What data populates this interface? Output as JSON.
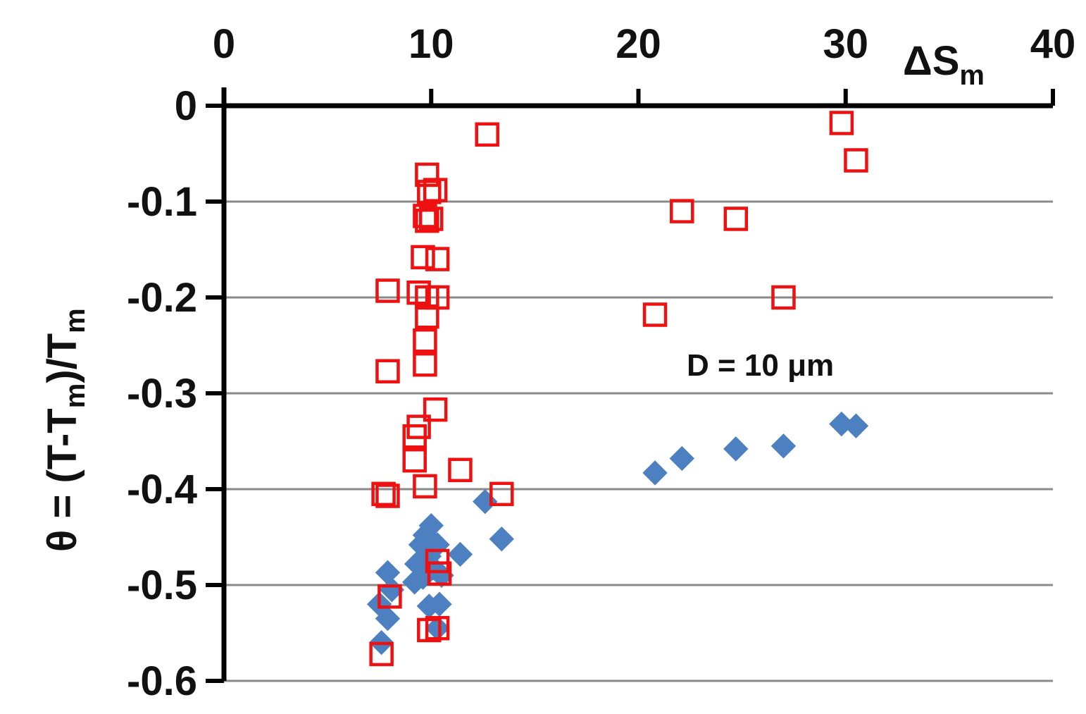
{
  "chart_data": {
    "type": "scatter",
    "x_axis": {
      "label_main": "ΔS",
      "label_sub": "m",
      "range": [
        0,
        40
      ],
      "ticks": [
        "0",
        "10",
        "20",
        "30",
        "40"
      ],
      "position": "top"
    },
    "y_axis": {
      "label_prefix": "θ = (T-T",
      "label_sub1": "m",
      "label_mid": ")/T",
      "label_sub2": "m",
      "range": [
        -0.6,
        0
      ],
      "ticks": [
        "0",
        "-0.1",
        "-0.2",
        "-0.3",
        "-0.4",
        "-0.5",
        "-0.6"
      ],
      "grid": true
    },
    "annotation": "D = 10 μm",
    "series": [
      {
        "marker": "open-square",
        "color": "#ee1111",
        "points": [
          [
            12.7,
            -0.03
          ],
          [
            29.8,
            -0.018
          ],
          [
            30.5,
            -0.057
          ],
          [
            9.8,
            -0.072
          ],
          [
            9.9,
            -0.09
          ],
          [
            10.2,
            -0.088
          ],
          [
            9.7,
            -0.115
          ],
          [
            9.8,
            -0.12
          ],
          [
            10.0,
            -0.118
          ],
          [
            9.6,
            -0.158
          ],
          [
            10.3,
            -0.16
          ],
          [
            7.9,
            -0.193
          ],
          [
            9.4,
            -0.195
          ],
          [
            9.8,
            -0.2
          ],
          [
            10.3,
            -0.2
          ],
          [
            9.8,
            -0.22
          ],
          [
            9.7,
            -0.245
          ],
          [
            9.7,
            -0.27
          ],
          [
            7.9,
            -0.277
          ],
          [
            10.2,
            -0.317
          ],
          [
            9.4,
            -0.335
          ],
          [
            9.2,
            -0.345
          ],
          [
            9.2,
            -0.37
          ],
          [
            11.4,
            -0.38
          ],
          [
            7.7,
            -0.405
          ],
          [
            7.9,
            -0.407
          ],
          [
            9.7,
            -0.397
          ],
          [
            13.4,
            -0.405
          ],
          [
            10.3,
            -0.475
          ],
          [
            10.4,
            -0.488
          ],
          [
            8.0,
            -0.512
          ],
          [
            9.9,
            -0.547
          ],
          [
            10.3,
            -0.545
          ],
          [
            7.6,
            -0.572
          ],
          [
            22.1,
            -0.11
          ],
          [
            24.7,
            -0.118
          ],
          [
            20.8,
            -0.218
          ],
          [
            27.0,
            -0.2
          ]
        ]
      },
      {
        "marker": "filled-diamond",
        "color": "#4d80c0",
        "points": [
          [
            20.8,
            -0.383
          ],
          [
            22.1,
            -0.368
          ],
          [
            24.7,
            -0.358
          ],
          [
            27.0,
            -0.355
          ],
          [
            29.8,
            -0.332
          ],
          [
            30.5,
            -0.334
          ],
          [
            12.6,
            -0.413
          ],
          [
            13.4,
            -0.452
          ],
          [
            11.4,
            -0.468
          ],
          [
            10.0,
            -0.438
          ],
          [
            9.7,
            -0.448
          ],
          [
            9.5,
            -0.458
          ],
          [
            10.3,
            -0.458
          ],
          [
            9.9,
            -0.47
          ],
          [
            9.3,
            -0.478
          ],
          [
            10.1,
            -0.482
          ],
          [
            9.6,
            -0.492
          ],
          [
            9.2,
            -0.497
          ],
          [
            10.5,
            -0.49
          ],
          [
            7.9,
            -0.487
          ],
          [
            8.1,
            -0.505
          ],
          [
            7.5,
            -0.52
          ],
          [
            7.9,
            -0.535
          ],
          [
            9.9,
            -0.522
          ],
          [
            10.4,
            -0.52
          ],
          [
            7.6,
            -0.56
          ],
          [
            10.3,
            -0.545
          ]
        ]
      }
    ]
  }
}
